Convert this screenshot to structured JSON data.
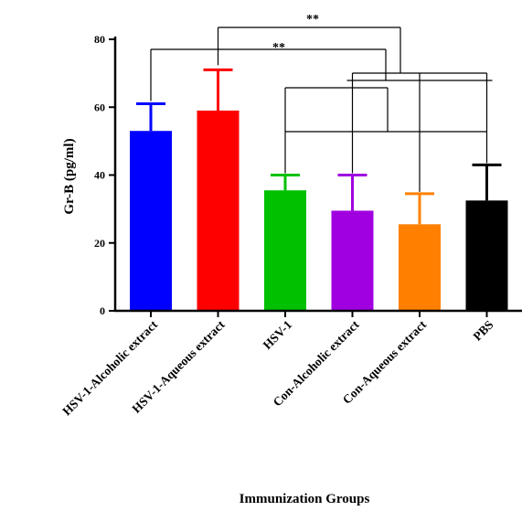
{
  "chart_data": {
    "type": "bar",
    "title": "",
    "xlabel": "Immunization Groups",
    "ylabel": "Gr-B (pg/ml)",
    "ylim": [
      0,
      80
    ],
    "yticks": [
      0,
      20,
      40,
      60,
      80
    ],
    "categories": [
      "HSV-1-Alcoholic extract",
      "HSV-1-Aqueous extract",
      "HSV-1",
      "Con-Alcoholic extract",
      "Con-Aqueous extract",
      "PBS"
    ],
    "values": [
      53,
      59,
      35.5,
      29.5,
      25.5,
      32.5
    ],
    "errors": [
      8,
      12,
      4.5,
      10.5,
      9,
      10.5
    ],
    "colors": [
      "#0000ff",
      "#ff0000",
      "#00c000",
      "#a000e0",
      "#ff8000",
      "#000000"
    ],
    "grid": false,
    "legend": "none",
    "significance": [
      {
        "label": "**",
        "from": 1,
        "to": [
          3,
          4,
          5
        ]
      },
      {
        "label": "**",
        "from": 0,
        "to": [
          3,
          4,
          5
        ]
      },
      {
        "from": 2,
        "to": [
          3,
          4,
          5
        ]
      }
    ]
  }
}
